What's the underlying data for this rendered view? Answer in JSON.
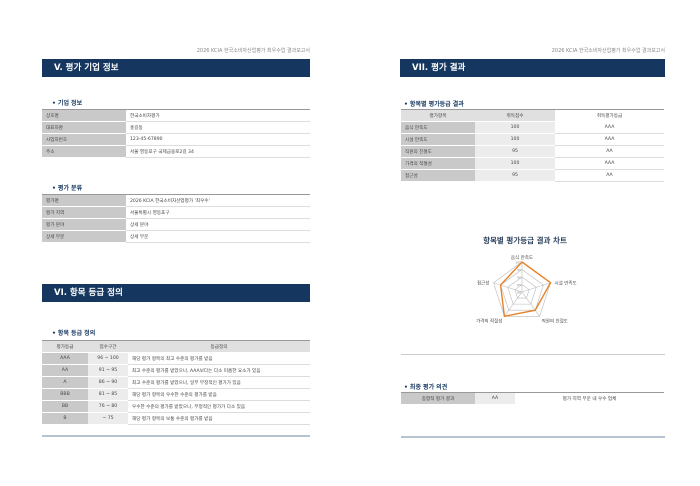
{
  "running_header": "2026 KCIA 한국소비자산업평가 최우수업 결과보고서",
  "left": {
    "section5_title": "V. 평가 기업 정보",
    "company_heading": "• 기업 정보",
    "company": [
      [
        "상호명",
        "한국소비자평가"
      ],
      [
        "대표자명",
        "홍길동"
      ],
      [
        "사업자번호",
        "123-45-67890"
      ],
      [
        "주소",
        "서울 영등포구 국제금융로2길 34"
      ]
    ],
    "class_heading": "• 평가 분류",
    "classification": [
      [
        "평가명",
        "2026 KCIA 한국소비자산업평가 '최우수'"
      ],
      [
        "평가 지역",
        "서울특별시 영등포구"
      ],
      [
        "평가 분야",
        "상세 분야"
      ],
      [
        "상세 부문",
        "상세 부문"
      ]
    ],
    "section6_title": "VI. 항목 등급 정의",
    "grade_heading": "• 항목 등급 정의",
    "grade_headers": [
      "평가등급",
      "점수구간",
      "등급정의"
    ],
    "grades": [
      [
        "AAA",
        "96 ~ 100",
        "해당 평가 항목의 최고 수준의 평가를 받음"
      ],
      [
        "AA",
        "91 ~ 95",
        "최고 수준의 평가를 받았으나, AAA보다는 다소 미흡한 요소가 있음"
      ],
      [
        "A",
        "86 ~ 90",
        "최고 수준의 평가를 받았으나, 일부 부정적인 평가가 있음"
      ],
      [
        "BBB",
        "81 ~ 85",
        "해당 평가 항목의 우수한 수준의 평가를 받음"
      ],
      [
        "BB",
        "76 ~ 80",
        "우수한 수준의 평가를 받았으나, 부정적인 평가가 다소 있음"
      ],
      [
        "B",
        "~ 75",
        "해당 평가 항목의 보통 수준의 평가를 받음"
      ]
    ]
  },
  "right": {
    "section7_title": "VII. 평가 결과",
    "result_heading": "• 항목별 평가등급 결과",
    "result_headers": [
      "평가항목",
      "취득점수",
      "취득평가등급"
    ],
    "results": [
      [
        "음식 만족도",
        "100",
        "AAA"
      ],
      [
        "시설 만족도",
        "100",
        "AAA"
      ],
      [
        "직원의 친절도",
        "95",
        "AA"
      ],
      [
        "가격의 적절성",
        "100",
        "AAA"
      ],
      [
        "접근성",
        "95",
        "AA"
      ]
    ],
    "final_heading": "• 최종 평가 의견",
    "final": [
      "종합적 평가 결과",
      "AA",
      "평가 지역 부문 내 우수 업체"
    ]
  },
  "chart_data": {
    "type": "radar",
    "title": "항목별 평가등급 결과 차트",
    "categories": [
      "음식 만족도",
      "시설 만족도",
      "직원의 친절도",
      "가격의 적절성",
      "접근성"
    ],
    "values": [
      100,
      100,
      95,
      100,
      95
    ],
    "range": [
      80,
      100
    ],
    "ticks": [
      80,
      85,
      90,
      95,
      100
    ],
    "color": "#e8822a"
  },
  "colors": {
    "header_bar": "#14365f",
    "series": "#e8822a"
  }
}
